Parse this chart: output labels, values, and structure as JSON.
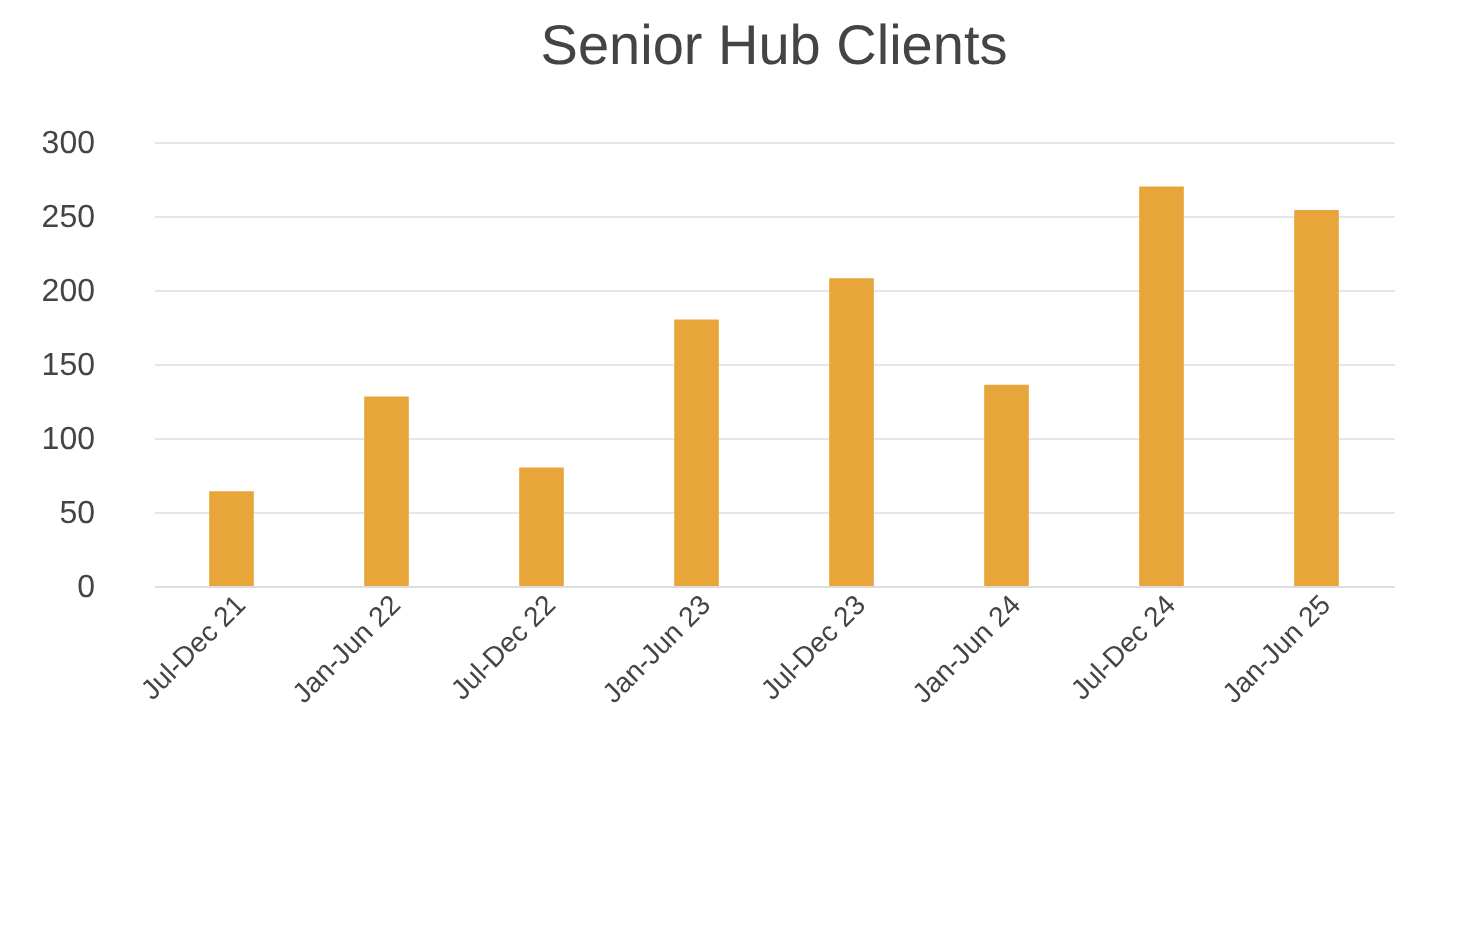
{
  "chart_data": {
    "type": "bar",
    "title": "Senior Hub Clients",
    "categories": [
      "Jul-Dec 21",
      "Jan-Jun 22",
      "Jul-Dec 22",
      "Jan-Jun 23",
      "Jul-Dec 23",
      "Jan-Jun 24",
      "Jul-Dec 24",
      "Jan-Jun 25"
    ],
    "values": [
      64,
      128,
      80,
      180,
      208,
      136,
      270,
      254
    ],
    "color": "#e8a63a",
    "ylim": [
      0,
      300
    ],
    "yticks": [
      0,
      50,
      100,
      150,
      200,
      250,
      300
    ],
    "grid": "y"
  }
}
